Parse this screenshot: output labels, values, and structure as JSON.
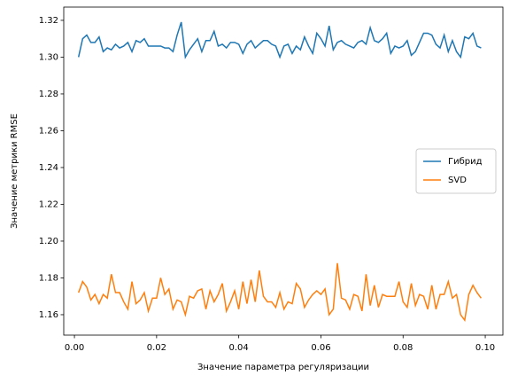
{
  "chart_data": {
    "type": "line",
    "xlabel": "Значение параметра регуляризации",
    "ylabel": "Значение метрики RMSE",
    "x": [
      0.001,
      0.002,
      0.003,
      0.004,
      0.005,
      0.006,
      0.007,
      0.008,
      0.009,
      0.01,
      0.011,
      0.012,
      0.013,
      0.014,
      0.015,
      0.016,
      0.017,
      0.018,
      0.019,
      0.02,
      0.021,
      0.022,
      0.023,
      0.024,
      0.025,
      0.026,
      0.027,
      0.028,
      0.029,
      0.03,
      0.031,
      0.032,
      0.033,
      0.034,
      0.035,
      0.036,
      0.037,
      0.038,
      0.039,
      0.04,
      0.041,
      0.042,
      0.043,
      0.044,
      0.045,
      0.046,
      0.047,
      0.048,
      0.049,
      0.05,
      0.051,
      0.052,
      0.053,
      0.054,
      0.055,
      0.056,
      0.057,
      0.058,
      0.059,
      0.06,
      0.061,
      0.062,
      0.063,
      0.064,
      0.065,
      0.066,
      0.067,
      0.068,
      0.069,
      0.07,
      0.071,
      0.072,
      0.073,
      0.074,
      0.075,
      0.076,
      0.077,
      0.078,
      0.079,
      0.08,
      0.081,
      0.082,
      0.083,
      0.084,
      0.085,
      0.086,
      0.087,
      0.088,
      0.089,
      0.09,
      0.091,
      0.092,
      0.093,
      0.094,
      0.095,
      0.096,
      0.097,
      0.098,
      0.099
    ],
    "series": [
      {
        "name": "Гибрид",
        "color": "#1f77b4",
        "values": [
          1.3,
          1.31,
          1.312,
          1.308,
          1.308,
          1.311,
          1.303,
          1.305,
          1.304,
          1.307,
          1.305,
          1.306,
          1.308,
          1.303,
          1.309,
          1.308,
          1.31,
          1.306,
          1.306,
          1.306,
          1.306,
          1.305,
          1.305,
          1.303,
          1.312,
          1.319,
          1.3,
          1.304,
          1.307,
          1.31,
          1.303,
          1.309,
          1.309,
          1.314,
          1.306,
          1.307,
          1.305,
          1.308,
          1.308,
          1.307,
          1.302,
          1.307,
          1.309,
          1.305,
          1.307,
          1.309,
          1.309,
          1.307,
          1.306,
          1.3,
          1.306,
          1.307,
          1.302,
          1.306,
          1.304,
          1.311,
          1.306,
          1.302,
          1.313,
          1.31,
          1.306,
          1.317,
          1.304,
          1.308,
          1.309,
          1.307,
          1.306,
          1.305,
          1.308,
          1.309,
          1.307,
          1.316,
          1.309,
          1.308,
          1.31,
          1.313,
          1.302,
          1.306,
          1.305,
          1.306,
          1.309,
          1.301,
          1.303,
          1.308,
          1.313,
          1.313,
          1.312,
          1.307,
          1.305,
          1.312,
          1.303,
          1.309,
          1.303,
          1.3,
          1.311,
          1.31,
          1.313,
          1.306,
          1.305
        ]
      },
      {
        "name": "SVD",
        "color": "#ff7f0e",
        "values": [
          1.172,
          1.178,
          1.175,
          1.168,
          1.171,
          1.166,
          1.171,
          1.169,
          1.182,
          1.172,
          1.172,
          1.167,
          1.163,
          1.178,
          1.166,
          1.168,
          1.172,
          1.162,
          1.169,
          1.169,
          1.18,
          1.171,
          1.174,
          1.163,
          1.168,
          1.167,
          1.16,
          1.17,
          1.169,
          1.173,
          1.174,
          1.163,
          1.173,
          1.167,
          1.171,
          1.177,
          1.162,
          1.167,
          1.173,
          1.163,
          1.178,
          1.166,
          1.179,
          1.167,
          1.184,
          1.17,
          1.167,
          1.167,
          1.164,
          1.172,
          1.163,
          1.167,
          1.166,
          1.177,
          1.174,
          1.164,
          1.168,
          1.171,
          1.173,
          1.171,
          1.174,
          1.16,
          1.163,
          1.188,
          1.169,
          1.168,
          1.163,
          1.171,
          1.17,
          1.162,
          1.182,
          1.165,
          1.176,
          1.164,
          1.171,
          1.17,
          1.17,
          1.17,
          1.178,
          1.167,
          1.164,
          1.177,
          1.165,
          1.171,
          1.17,
          1.163,
          1.176,
          1.163,
          1.171,
          1.171,
          1.178,
          1.169,
          1.171,
          1.16,
          1.157,
          1.171,
          1.176,
          1.172,
          1.169
        ]
      }
    ],
    "xlim": [
      -0.0026,
      0.1043
    ],
    "ylim": [
      1.1489,
      1.3272
    ],
    "xticks": [
      {
        "value": 0,
        "label": "0.00"
      },
      0.02,
      0.04,
      0.06,
      0.08,
      {
        "value": 0.1,
        "label": "0.10"
      }
    ],
    "yticks": [
      1.16,
      1.18,
      {
        "value": 1.2,
        "label": "1.20"
      },
      1.22,
      1.24,
      1.26,
      1.28,
      {
        "value": 1.3,
        "label": "1.30"
      },
      1.32
    ],
    "legend": "center right"
  }
}
